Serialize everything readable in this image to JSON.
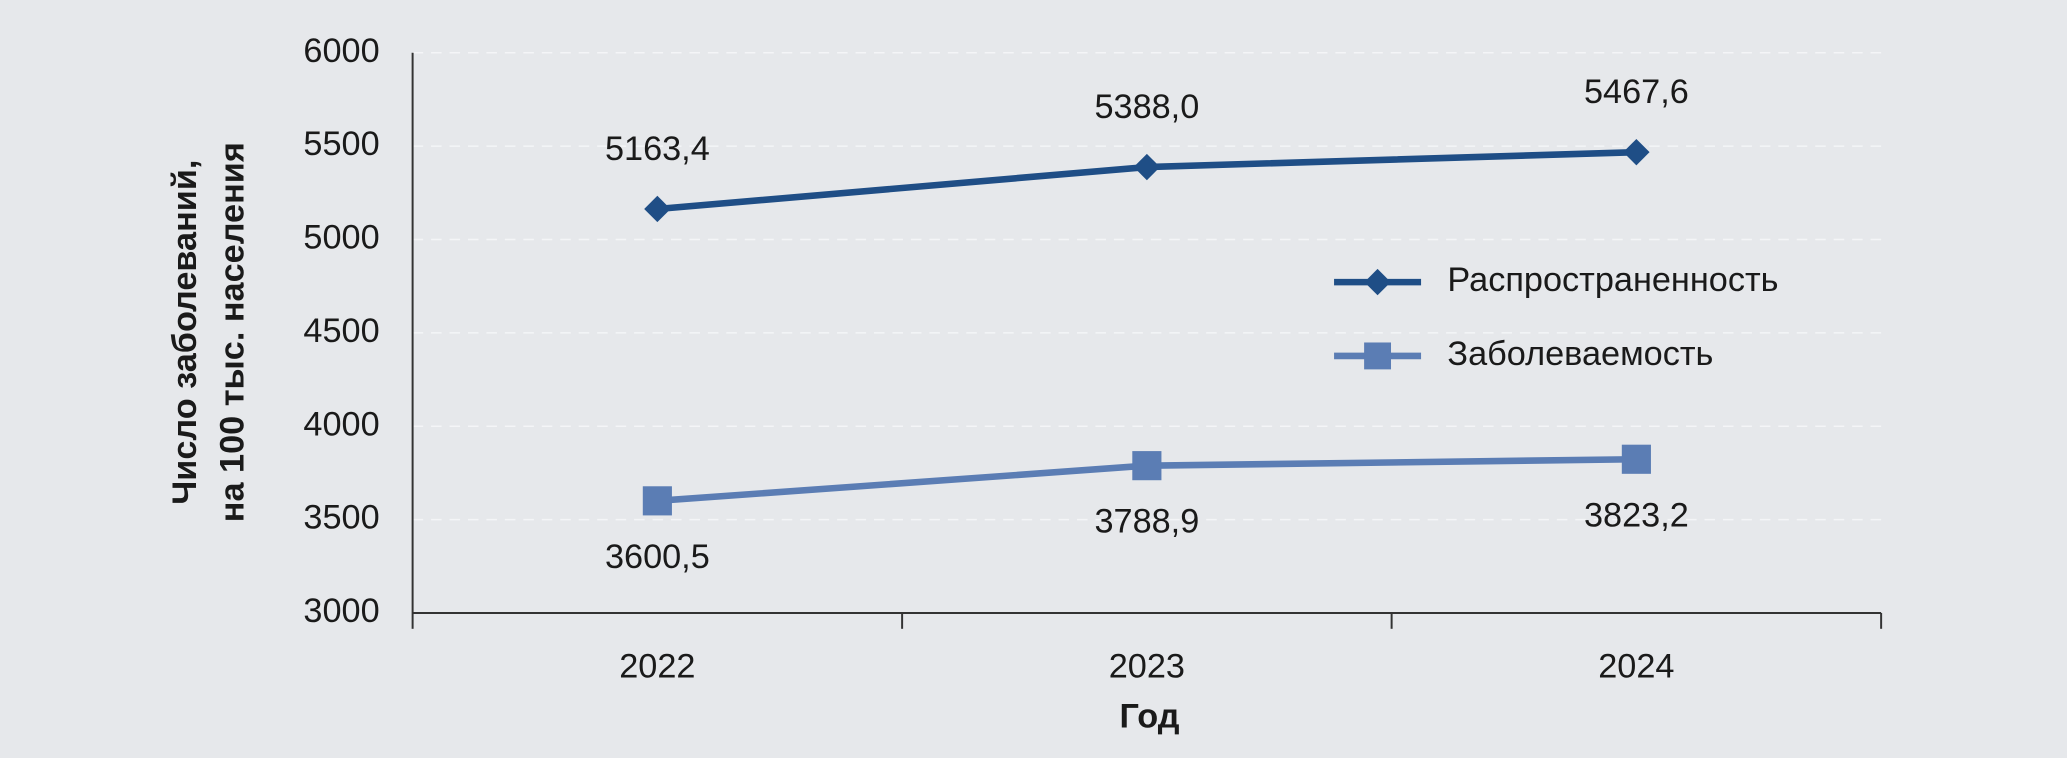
{
  "chart_data": {
    "type": "line",
    "xlabel": "Год",
    "ylabel": [
      "Число заболеваний,",
      "на 100 тыс. населения"
    ],
    "categories": [
      "2022",
      "2023",
      "2024"
    ],
    "series": [
      {
        "name": "Распространенность",
        "color": "#1f4e86",
        "marker": "diamond",
        "label_position": "above",
        "values": [
          5163.4,
          5388.0,
          5467.6
        ],
        "value_labels": [
          "5163,4",
          "5388,0",
          "5467,6"
        ]
      },
      {
        "name": "Заболеваемость",
        "color": "#5b7db4",
        "marker": "square",
        "label_position": "below",
        "values": [
          3600.5,
          3788.9,
          3823.2
        ],
        "value_labels": [
          "3600,5",
          "3788,9",
          "3823,2"
        ]
      }
    ],
    "ylim": [
      3000,
      6000
    ],
    "yticks": [
      3000,
      3500,
      4000,
      4500,
      5000,
      5500,
      6000
    ],
    "grid": true,
    "legend": "right"
  }
}
